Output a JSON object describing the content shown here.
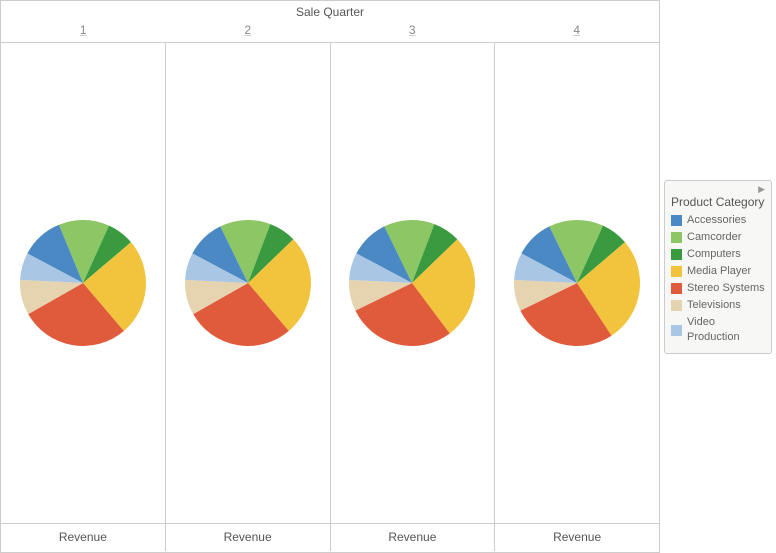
{
  "header_title": "Sale Quarter",
  "quarters": [
    "1",
    "2",
    "3",
    "4"
  ],
  "footer_label": "Revenue",
  "legend_title": "Product Category",
  "categories": [
    {
      "name": "Accessories",
      "color": "#4a89c4"
    },
    {
      "name": "Camcorder",
      "color": "#8cc665"
    },
    {
      "name": "Computers",
      "color": "#3a9a3f"
    },
    {
      "name": "Media Player",
      "color": "#f2c33c"
    },
    {
      "name": "Stereo Systems",
      "color": "#e05b3b"
    },
    {
      "name": "Televisions",
      "color": "#e6d3b0"
    },
    {
      "name": "Video Production",
      "color": "#a9c7e4"
    }
  ],
  "chart": {
    "type": "pie",
    "radius": 63,
    "start_angle_deg": -62,
    "background_color": "#ffffff",
    "border_color": "#cccccc",
    "label_color": "#555555",
    "label_fontsize": 12,
    "sublabel_color": "#888888"
  },
  "pies": [
    {
      "values": [
        11,
        13,
        7,
        25,
        28,
        9,
        7
      ]
    },
    {
      "values": [
        10,
        13,
        7,
        26,
        28,
        9,
        7
      ]
    },
    {
      "values": [
        10,
        13,
        7,
        27,
        28,
        8,
        7
      ]
    },
    {
      "values": [
        10,
        14,
        7,
        27,
        27,
        8,
        7
      ]
    }
  ]
}
